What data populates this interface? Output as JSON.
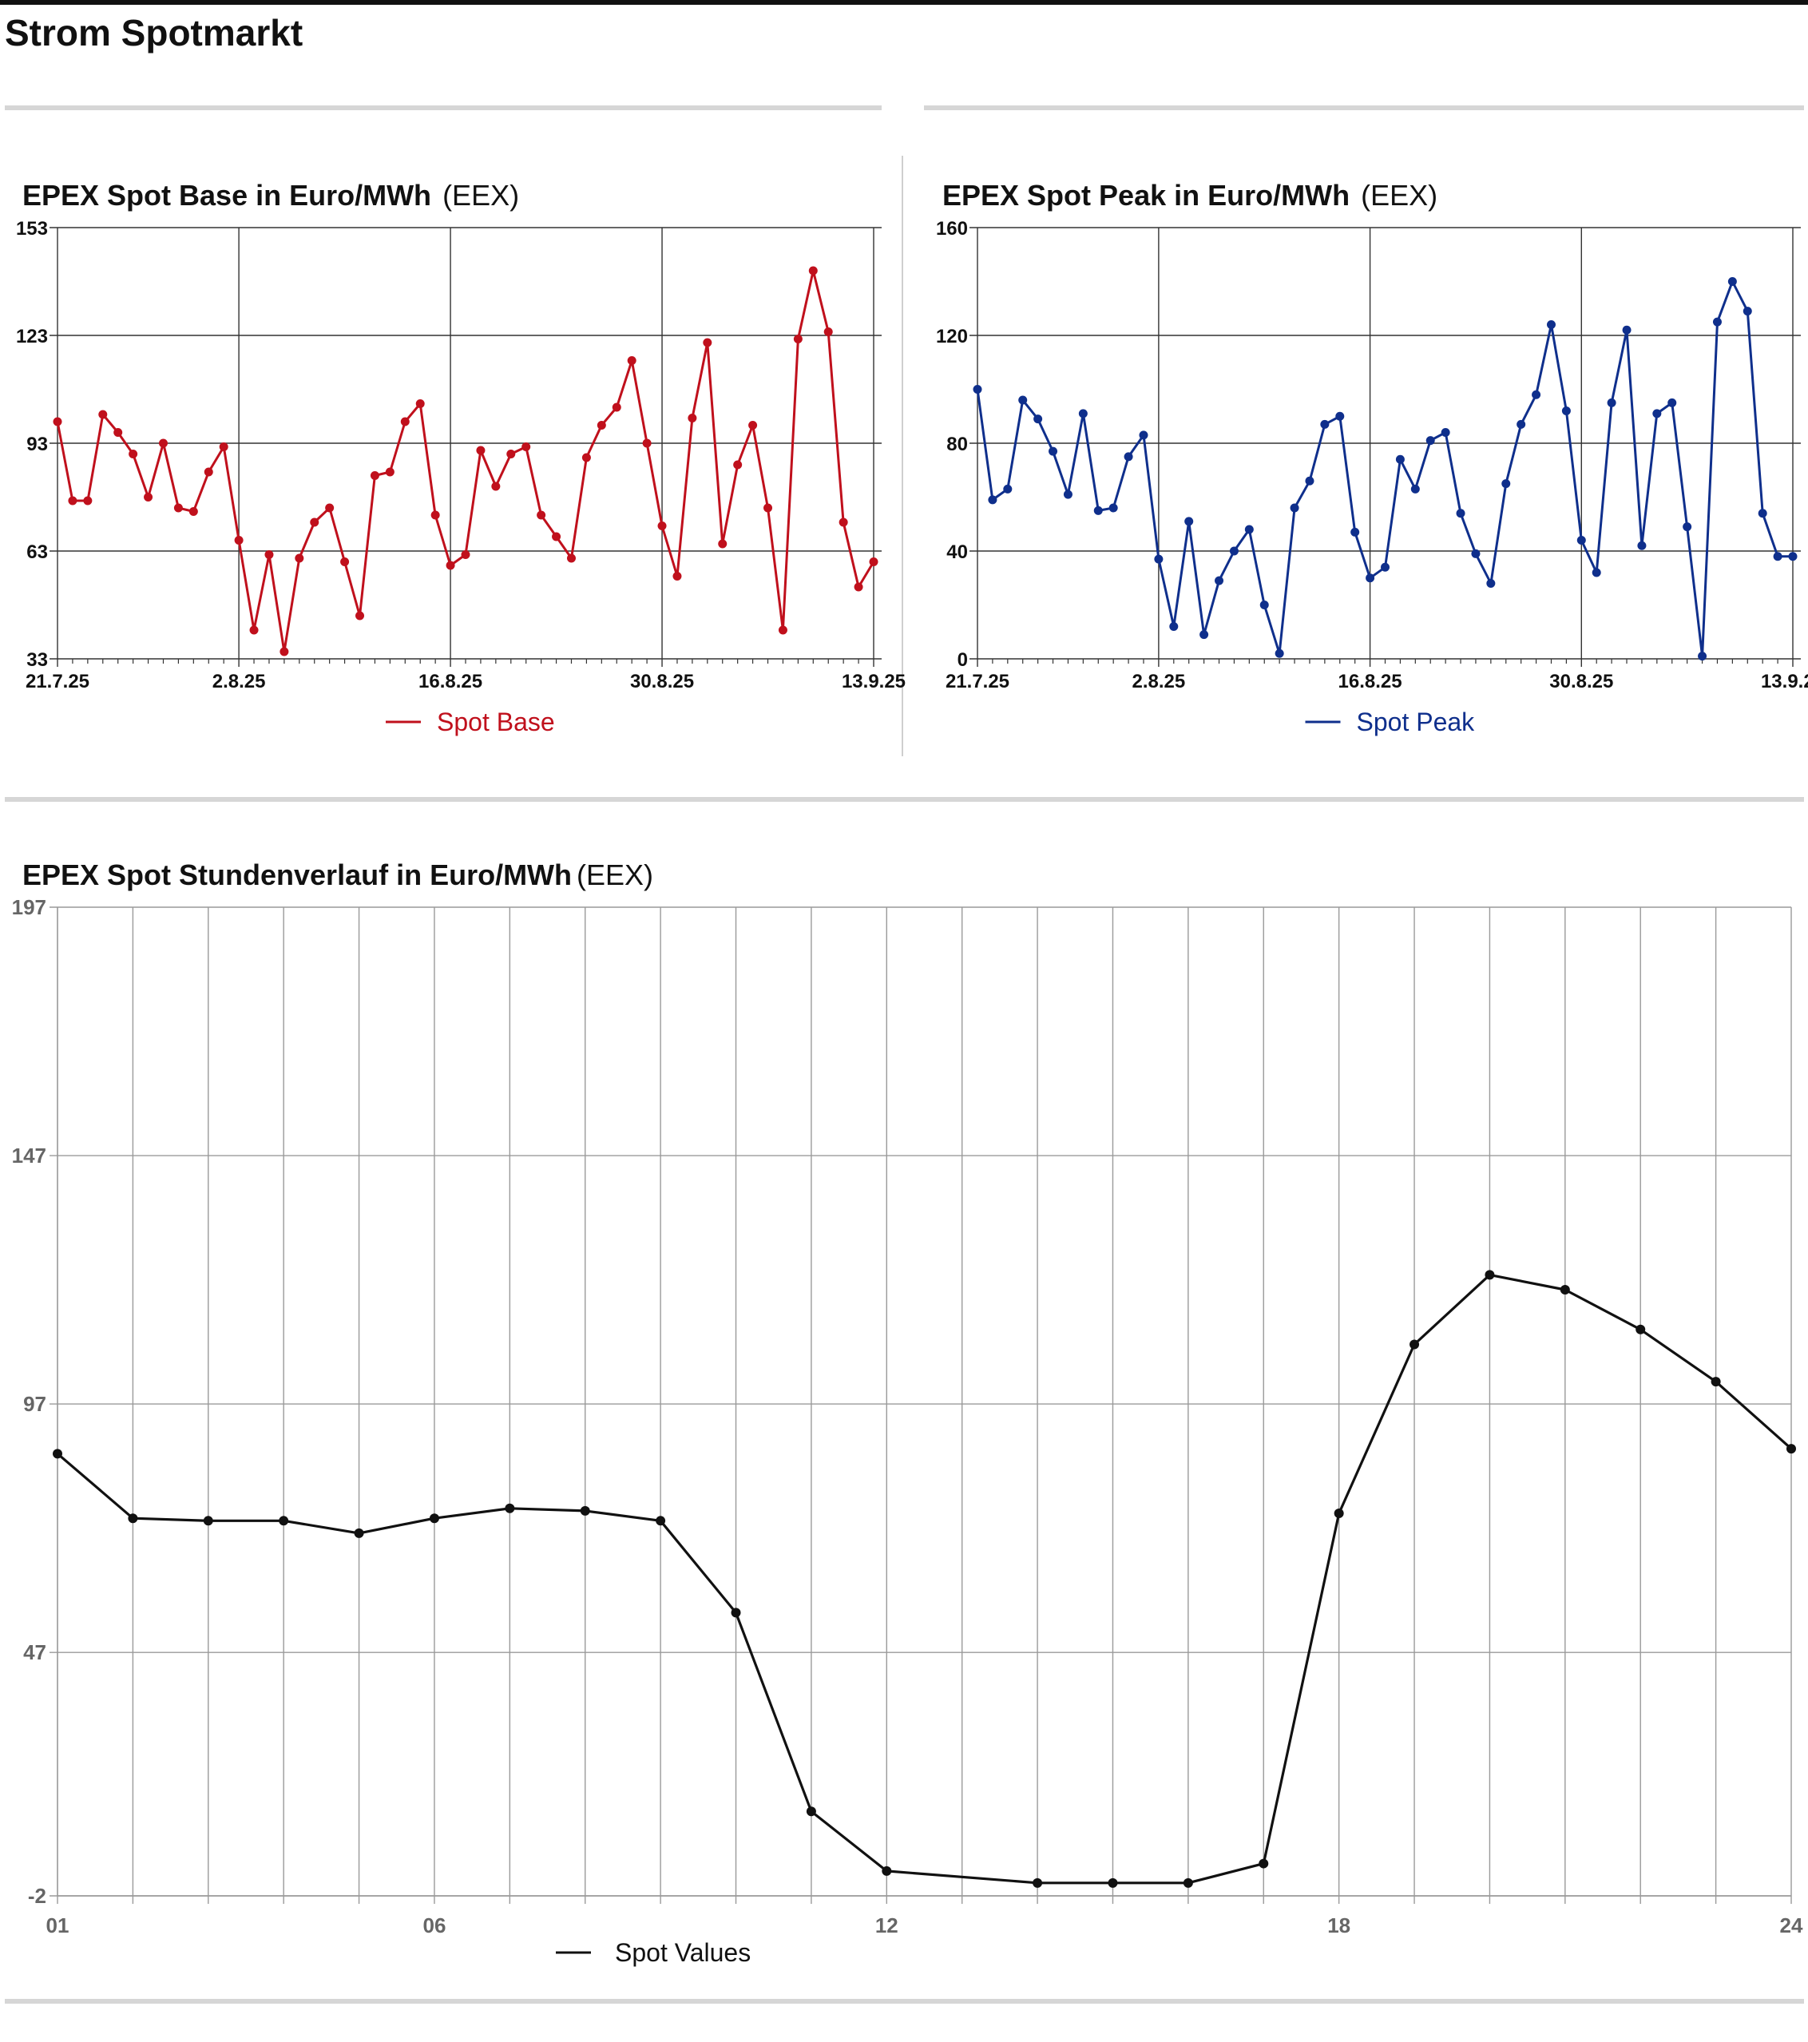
{
  "page": {
    "title": "Strom Spotmarkt"
  },
  "charts": {
    "base": {
      "title": "EPEX Spot Base in Euro/MWh",
      "source": "(EEX)"
    },
    "peak": {
      "title": "EPEX Spot Peak in Euro/MWh",
      "source": "(EEX)"
    },
    "hourly": {
      "title": "EPEX Spot Stundenverlauf in Euro/MWh",
      "source": "(EEX)"
    }
  },
  "chart_data": [
    {
      "type": "line",
      "title": "EPEX Spot Base in Euro/MWh",
      "source": "(EEX)",
      "ylim": [
        33,
        153
      ],
      "yticks": [
        33,
        63,
        93,
        123,
        153
      ],
      "xtick_labels": [
        "21.7.25",
        "2.8.25",
        "16.8.25",
        "30.8.25",
        "13.9.25"
      ],
      "xtick_index": [
        0,
        12,
        26,
        40,
        54
      ],
      "grid": true,
      "legend": "bottom-center",
      "color": "#c0101c",
      "series": [
        {
          "name": "Spot Base",
          "values": [
            99,
            77,
            77,
            101,
            96,
            90,
            78,
            93,
            75,
            74,
            85,
            92,
            66,
            41,
            62,
            35,
            61,
            71,
            75,
            60,
            45,
            84,
            85,
            99,
            104,
            73,
            59,
            62,
            91,
            81,
            90,
            92,
            73,
            67,
            61,
            89,
            98,
            103,
            116,
            93,
            70,
            56,
            100,
            121,
            65,
            87,
            98,
            75,
            41,
            122,
            141,
            124,
            71,
            53,
            60
          ]
        }
      ]
    },
    {
      "type": "line",
      "title": "EPEX Spot Peak in Euro/MWh",
      "source": "(EEX)",
      "ylim": [
        0,
        160
      ],
      "yticks": [
        0,
        40,
        80,
        120,
        160
      ],
      "xtick_labels": [
        "21.7.25",
        "2.8.25",
        "16.8.25",
        "30.8.25",
        "13.9.25"
      ],
      "xtick_index": [
        0,
        12,
        26,
        40,
        54
      ],
      "grid": true,
      "legend": "bottom-center",
      "color": "#0f2f8c",
      "series": [
        {
          "name": "Spot Peak",
          "values": [
            100,
            59,
            63,
            96,
            89,
            77,
            61,
            91,
            55,
            56,
            75,
            83,
            37,
            12,
            51,
            9,
            29,
            40,
            48,
            20,
            2,
            56,
            66,
            87,
            90,
            47,
            30,
            34,
            74,
            63,
            81,
            84,
            54,
            39,
            28,
            65,
            87,
            98,
            124,
            92,
            44,
            32,
            95,
            122,
            42,
            91,
            95,
            49,
            1,
            125,
            140,
            129,
            54,
            38,
            38
          ]
        }
      ]
    },
    {
      "type": "line",
      "title": "EPEX Spot Stundenverlauf in Euro/MWh",
      "source": "(EEX)",
      "x": [
        1,
        2,
        3,
        4,
        5,
        6,
        7,
        8,
        9,
        10,
        11,
        12,
        13,
        14,
        15,
        16,
        17,
        18,
        19,
        20,
        21,
        22,
        23,
        24
      ],
      "xtick_labels": [
        "01",
        "06",
        "12",
        "18",
        "24"
      ],
      "ylim": [
        -2,
        197
      ],
      "yticks": [
        -2,
        47,
        97,
        147,
        197
      ],
      "grid": true,
      "legend": "bottom-center",
      "color": "#111111",
      "series": [
        {
          "name": "Spot Values",
          "values": [
            87,
            74,
            73.5,
            73.5,
            71,
            74,
            76,
            75.5,
            73.5,
            55,
            15,
            3,
            null,
            0.6,
            0.6,
            0.6,
            4.5,
            75,
            109,
            123,
            120,
            112,
            101.5,
            88
          ]
        }
      ]
    }
  ]
}
